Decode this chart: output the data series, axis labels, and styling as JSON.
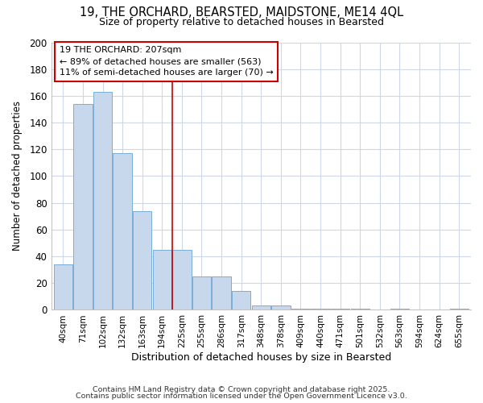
{
  "title": "19, THE ORCHARD, BEARSTED, MAIDSTONE, ME14 4QL",
  "subtitle": "Size of property relative to detached houses in Bearsted",
  "xlabel": "Distribution of detached houses by size in Bearsted",
  "ylabel": "Number of detached properties",
  "categories": [
    "40sqm",
    "71sqm",
    "102sqm",
    "132sqm",
    "163sqm",
    "194sqm",
    "225sqm",
    "255sqm",
    "286sqm",
    "317sqm",
    "348sqm",
    "378sqm",
    "409sqm",
    "440sqm",
    "471sqm",
    "501sqm",
    "532sqm",
    "563sqm",
    "594sqm",
    "624sqm",
    "655sqm"
  ],
  "values": [
    34,
    154,
    163,
    117,
    74,
    45,
    45,
    25,
    25,
    14,
    3,
    3,
    1,
    1,
    1,
    1,
    0,
    1,
    0,
    0,
    1
  ],
  "bar_color": "#c8d8ec",
  "bar_edge_color": "#7aadd4",
  "vline_x": 5.5,
  "vline_color": "#cc0000",
  "annotation_line1": "19 THE ORCHARD: 207sqm",
  "annotation_line2": "← 89% of detached houses are smaller (563)",
  "annotation_line3": "11% of semi-detached houses are larger (70) →",
  "annotation_box_color": "#ffffff",
  "annotation_box_edge_color": "#cc0000",
  "ylim": [
    0,
    200
  ],
  "yticks": [
    0,
    20,
    40,
    60,
    80,
    100,
    120,
    140,
    160,
    180,
    200
  ],
  "bg_color": "#ffffff",
  "plot_bg_color": "#ffffff",
  "grid_color": "#d0d8e8",
  "footer_line1": "Contains HM Land Registry data © Crown copyright and database right 2025.",
  "footer_line2": "Contains public sector information licensed under the Open Government Licence v3.0."
}
